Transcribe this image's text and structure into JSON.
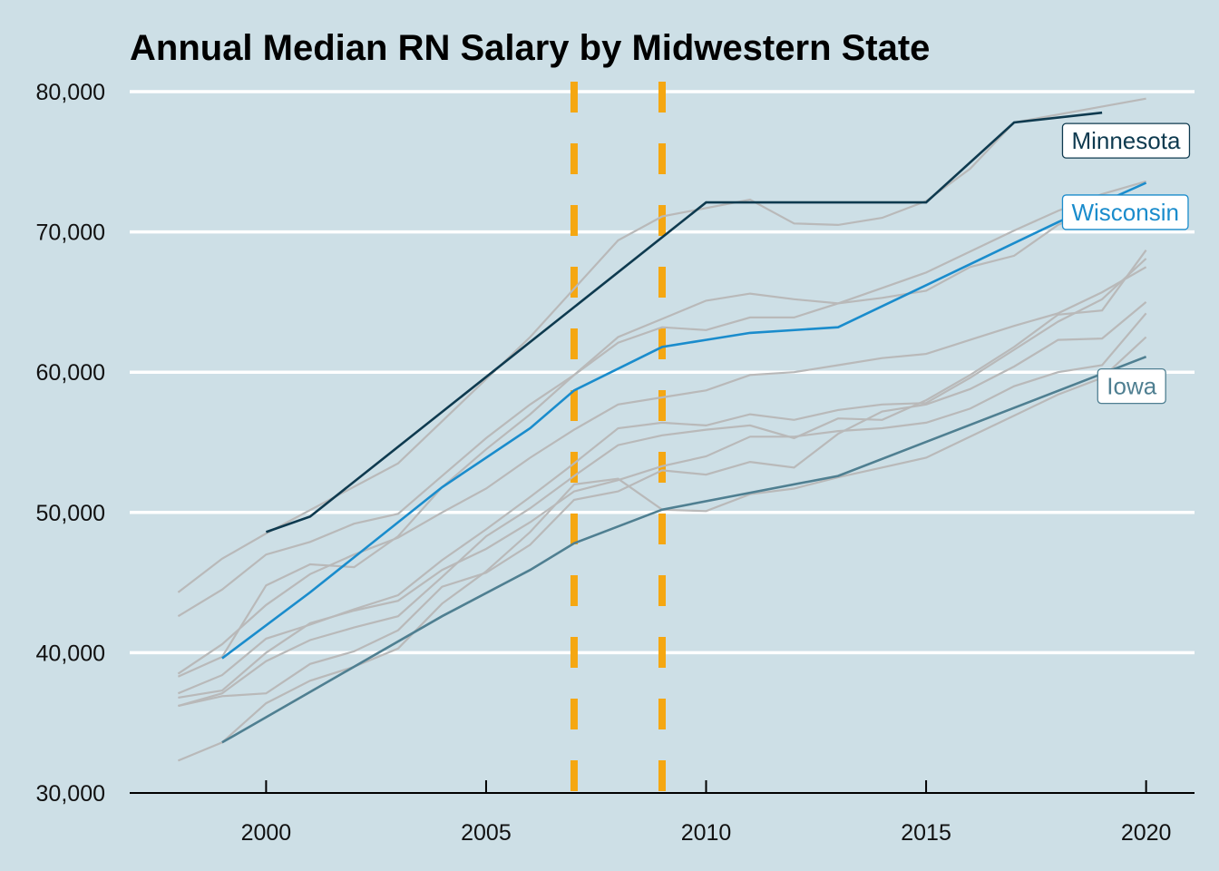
{
  "chart_data": {
    "type": "line",
    "title": "Annual Median RN Salary by Midwestern State",
    "xlabel": "",
    "ylabel": "",
    "xlim": [
      1996.9,
      2021.1
    ],
    "ylim": [
      30000,
      80000
    ],
    "x_ticks": [
      2000,
      2005,
      2010,
      2015,
      2020
    ],
    "y_ticks": [
      30000,
      40000,
      50000,
      60000,
      70000,
      80000
    ],
    "x_tick_labels": [
      "2000",
      "2005",
      "2010",
      "2015",
      "2020"
    ],
    "y_tick_labels": [
      "30,000",
      "40,000",
      "50,000",
      "60,000",
      "70,000",
      "80,000"
    ],
    "grid": "horizontal",
    "reference_lines_x": [
      2007,
      2009
    ],
    "reference_line_color": "#f5a712",
    "background_series_color": "#b9b9b9",
    "highlighted_series": [
      {
        "name": "Minnesota",
        "color": "#0e3a4f",
        "x": [
          2000,
          2001,
          2010,
          2011,
          2015,
          2017,
          2019
        ],
        "y": [
          48600,
          49700,
          72100,
          72100,
          72100,
          77800,
          78500
        ],
        "label_at": [
          2018.1,
          76500
        ]
      },
      {
        "name": "Wisconsin",
        "color": "#1a8ccc",
        "x": [
          1999,
          2001,
          2004,
          2006,
          2007,
          2009,
          2010,
          2011,
          2013,
          2016,
          2018,
          2020
        ],
        "y": [
          39600,
          44300,
          51800,
          56000,
          58700,
          61800,
          62300,
          62800,
          63200,
          67700,
          70700,
          73500
        ],
        "label_at": [
          2018.1,
          71400
        ]
      },
      {
        "name": "Iowa",
        "color": "#4f7f91",
        "x": [
          1999,
          2004,
          2006,
          2007,
          2009,
          2013,
          2020
        ],
        "y": [
          33600,
          42600,
          45900,
          47800,
          50200,
          52600,
          61100
        ],
        "label_at": [
          2018.9,
          59000
        ]
      }
    ],
    "background_series": [
      {
        "x": [
          1998,
          1999,
          2000,
          2003,
          2006,
          2008,
          2009,
          2011,
          2012,
          2013,
          2014,
          2015,
          2016,
          2017,
          2020
        ],
        "y": [
          44300,
          46700,
          48500,
          53500,
          62500,
          69400,
          71100,
          72300,
          70600,
          70500,
          71000,
          72200,
          74500,
          77800,
          79500
        ]
      },
      {
        "x": [
          1998,
          1999,
          2000,
          2001,
          2002,
          2003,
          2004,
          2005,
          2006,
          2007,
          2008,
          2009,
          2010,
          2011,
          2012,
          2013,
          2014,
          2015,
          2016,
          2017,
          2018,
          2019,
          2020
        ],
        "y": [
          42600,
          44500,
          47000,
          47900,
          49200,
          49900,
          52600,
          55300,
          57700,
          59800,
          62500,
          63800,
          65100,
          65600,
          65200,
          64900,
          65300,
          65800,
          67500,
          68300,
          70500,
          71800,
          72600
        ]
      },
      {
        "x": [
          1998,
          1999,
          2000,
          2001,
          2002,
          2003,
          2004,
          2005,
          2006,
          2007,
          2008,
          2009,
          2010,
          2011,
          2012,
          2013,
          2014,
          2015,
          2016,
          2017,
          2018,
          2019,
          2020
        ],
        "y": [
          38300,
          39700,
          44800,
          46300,
          46100,
          48300,
          51800,
          54500,
          57000,
          59800,
          62100,
          63200,
          63000,
          63900,
          63900,
          64900,
          66000,
          67100,
          68600,
          70100,
          71500,
          72700,
          73600
        ]
      },
      {
        "x": [
          1998,
          1999,
          2000,
          2001,
          2002,
          2003,
          2004,
          2005,
          2006,
          2007,
          2008,
          2009,
          2010,
          2011,
          2012,
          2013,
          2014,
          2015,
          2016,
          2017,
          2018,
          2019,
          2020
        ],
        "y": [
          38500,
          40600,
          43400,
          45600,
          47000,
          48200,
          50000,
          51700,
          53900,
          55900,
          57700,
          58200,
          58700,
          59800,
          60000,
          60500,
          61000,
          61300,
          62300,
          63300,
          64200,
          65700,
          67500
        ]
      },
      {
        "x": [
          1998,
          1999,
          2000,
          2001,
          2002,
          2003,
          2004,
          2005,
          2006,
          2007,
          2008,
          2009,
          2010,
          2011,
          2012,
          2013,
          2014,
          2015,
          2016,
          2017,
          2018,
          2019,
          2020
        ],
        "y": [
          37100,
          38400,
          41000,
          42000,
          43100,
          44100,
          46600,
          48800,
          51100,
          53500,
          56000,
          56400,
          56200,
          57000,
          56600,
          57300,
          57700,
          57800,
          59600,
          61600,
          63600,
          65200,
          68100
        ]
      },
      {
        "x": [
          1998,
          1999,
          2000,
          2001,
          2002,
          2003,
          2004,
          2005,
          2006,
          2007,
          2008,
          2009,
          2010,
          2011,
          2012,
          2013,
          2014,
          2015,
          2016,
          2017,
          2018,
          2019,
          2020
        ],
        "y": [
          36800,
          37300,
          40000,
          42100,
          43000,
          43700,
          45900,
          47400,
          49300,
          51500,
          52300,
          53300,
          54000,
          55400,
          55400,
          55800,
          56000,
          56400,
          57400,
          59000,
          60000,
          60500,
          64200
        ]
      },
      {
        "x": [
          1998,
          1999,
          2000,
          2001,
          2002,
          2003,
          2004,
          2005,
          2006,
          2007,
          2008,
          2009,
          2010,
          2011,
          2012,
          2013,
          2014,
          2015,
          2016,
          2017,
          2018,
          2019,
          2020
        ],
        "y": [
          36200,
          36900,
          37100,
          39200,
          40100,
          41600,
          44700,
          45700,
          47700,
          50900,
          51500,
          53000,
          52700,
          53600,
          53200,
          55600,
          57200,
          57700,
          58800,
          60400,
          62300,
          62400,
          65000
        ]
      },
      {
        "x": [
          1998,
          1999,
          2000,
          2001,
          2002,
          2003,
          2004,
          2005,
          2006,
          2007,
          2008,
          2009,
          2010,
          2011,
          2012,
          2013,
          2014,
          2015,
          2016,
          2017,
          2018,
          2019,
          2020
        ],
        "y": [
          36200,
          37100,
          39400,
          40900,
          41800,
          42600,
          45400,
          48300,
          50300,
          52600,
          54800,
          55500,
          55900,
          56200,
          55300,
          56700,
          56600,
          58000,
          59800,
          61800,
          64100,
          64400,
          68700
        ]
      },
      {
        "x": [
          1998,
          1999,
          2000,
          2001,
          2002,
          2003,
          2004,
          2005,
          2006,
          2007,
          2008,
          2009,
          2010,
          2011,
          2012,
          2013,
          2014,
          2015,
          2016,
          2017,
          2018,
          2019,
          2020
        ],
        "y": [
          32300,
          33600,
          36400,
          38000,
          39000,
          40300,
          43500,
          45800,
          48600,
          52000,
          52400,
          50200,
          50100,
          51300,
          51700,
          52500,
          53200,
          53900,
          55400,
          56900,
          58400,
          59600,
          62500
        ]
      }
    ]
  }
}
